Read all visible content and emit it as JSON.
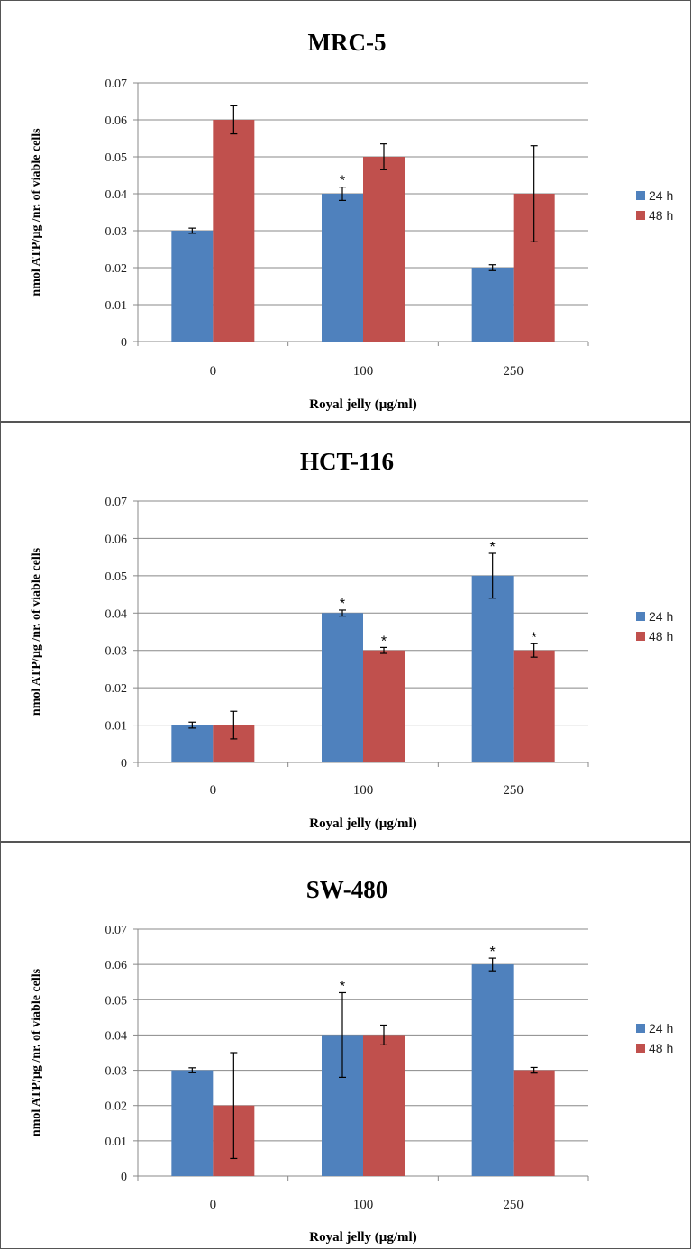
{
  "colors": {
    "series_24h": "#4f81bd",
    "series_48h": "#c0504d",
    "grid": "#888888",
    "axis": "#888888",
    "error_bar": "#000000"
  },
  "chart_data": [
    {
      "type": "bar",
      "title": "MRC-5",
      "xlabel": "Royal jelly (µg/ml)",
      "ylabel": "nmol ATP/µg /nr. of viable cells",
      "ylim": [
        0,
        0.07
      ],
      "yticks": [
        "0",
        "0.01",
        "0.02",
        "0.03",
        "0.04",
        "0.05",
        "0.06",
        "0.07"
      ],
      "grid": true,
      "legend_position": "right",
      "categories": [
        "0",
        "100",
        "250"
      ],
      "series": [
        {
          "name": "24 h",
          "values": [
            0.03,
            0.04,
            0.02
          ],
          "errors": [
            0.0007,
            0.0018,
            0.0008
          ],
          "significant": [
            false,
            true,
            false
          ]
        },
        {
          "name": "48 h",
          "values": [
            0.06,
            0.05,
            0.04
          ],
          "errors": [
            0.0038,
            0.0035,
            0.013
          ],
          "significant": [
            false,
            false,
            false
          ]
        }
      ]
    },
    {
      "type": "bar",
      "title": "HCT-116",
      "xlabel": "Royal jelly (µg/ml)",
      "ylabel": "nmol ATP/µg /nr. of viable cells",
      "ylim": [
        0,
        0.07
      ],
      "yticks": [
        "0",
        "0.01",
        "0.02",
        "0.03",
        "0.04",
        "0.05",
        "0.06",
        "0.07"
      ],
      "grid": true,
      "legend_position": "right",
      "categories": [
        "0",
        "100",
        "250"
      ],
      "series": [
        {
          "name": "24 h",
          "values": [
            0.01,
            0.04,
            0.05
          ],
          "errors": [
            0.0008,
            0.0008,
            0.006
          ],
          "significant": [
            false,
            true,
            true
          ]
        },
        {
          "name": "48 h",
          "values": [
            0.01,
            0.03,
            0.03
          ],
          "errors": [
            0.0037,
            0.0008,
            0.0018
          ],
          "significant": [
            false,
            true,
            true
          ]
        }
      ]
    },
    {
      "type": "bar",
      "title": "SW-480",
      "xlabel": "Royal jelly (µg/ml)",
      "ylabel": "nmol ATP/µg /nr. of viable cells",
      "ylim": [
        0,
        0.07
      ],
      "yticks": [
        "0",
        "0.01",
        "0.02",
        "0.03",
        "0.04",
        "0.05",
        "0.06",
        "0.07"
      ],
      "grid": true,
      "legend_position": "right",
      "categories": [
        "0",
        "100",
        "250"
      ],
      "series": [
        {
          "name": "24 h",
          "values": [
            0.03,
            0.04,
            0.06
          ],
          "errors": [
            0.0007,
            0.012,
            0.0018
          ],
          "significant": [
            false,
            true,
            true
          ]
        },
        {
          "name": "48 h",
          "values": [
            0.02,
            0.04,
            0.03
          ],
          "errors": [
            0.015,
            0.0028,
            0.0008
          ],
          "significant": [
            false,
            false,
            false
          ]
        }
      ]
    }
  ]
}
